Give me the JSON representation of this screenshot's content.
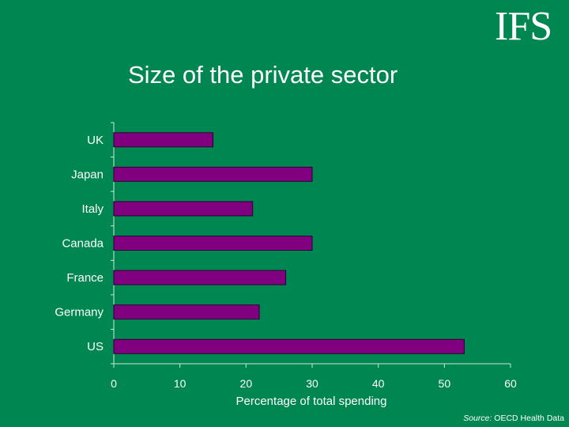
{
  "header": {
    "logo_text": "IFS",
    "title": "Size of the private sector"
  },
  "footer": {
    "source_label": "Source:",
    "source_text": "OECD Health Data"
  },
  "colors": {
    "background": "#008751",
    "bar": "#800080",
    "text": "#ffffff"
  },
  "chart_data": {
    "type": "bar",
    "orientation": "horizontal",
    "categories": [
      "UK",
      "Japan",
      "Italy",
      "Canada",
      "France",
      "Germany",
      "US"
    ],
    "values": [
      15,
      30,
      21,
      30,
      26,
      22,
      53
    ],
    "xlabel": "Percentage of total spending",
    "ylabel": "",
    "xlim": [
      0,
      60
    ],
    "xticks": [
      0,
      10,
      20,
      30,
      40,
      50,
      60
    ],
    "grid": false,
    "legend": "none"
  }
}
